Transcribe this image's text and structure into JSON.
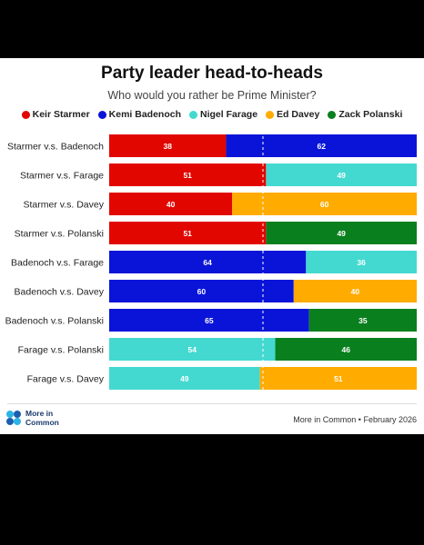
{
  "title": "Party leader head-to-heads",
  "subtitle": "Who would you rather be Prime Minister?",
  "legend": [
    {
      "name": "Keir Starmer",
      "color": "#e10600"
    },
    {
      "name": "Kemi Badenoch",
      "color": "#0a14d8"
    },
    {
      "name": "Nigel Farage",
      "color": "#43d9d0"
    },
    {
      "name": "Ed Davey",
      "color": "#ffab00"
    },
    {
      "name": "Zack Polanski",
      "color": "#0a7f1e"
    }
  ],
  "footer": {
    "logo_text": "More in Common",
    "source": "More in Common • February 2026"
  },
  "chart_data": {
    "type": "bar",
    "orientation": "horizontal",
    "stacked": true,
    "xlim": [
      0,
      100
    ],
    "reference_line": 50,
    "categories": [
      "Starmer v.s. Badenoch",
      "Starmer v.s. Farage",
      "Starmer v.s. Davey",
      "Starmer v.s. Polanski",
      "Badenoch v.s. Farage",
      "Badenoch v.s. Davey",
      "Badenoch v.s. Polanski",
      "Farage v.s. Polanski",
      "Farage v.s. Davey"
    ],
    "rows": [
      {
        "left": {
          "leader": "Keir Starmer",
          "value": 38
        },
        "right": {
          "leader": "Kemi Badenoch",
          "value": 62
        }
      },
      {
        "left": {
          "leader": "Keir Starmer",
          "value": 51
        },
        "right": {
          "leader": "Nigel Farage",
          "value": 49
        }
      },
      {
        "left": {
          "leader": "Keir Starmer",
          "value": 40
        },
        "right": {
          "leader": "Ed Davey",
          "value": 60
        }
      },
      {
        "left": {
          "leader": "Keir Starmer",
          "value": 51
        },
        "right": {
          "leader": "Zack Polanski",
          "value": 49
        }
      },
      {
        "left": {
          "leader": "Kemi Badenoch",
          "value": 64
        },
        "right": {
          "leader": "Nigel Farage",
          "value": 36
        }
      },
      {
        "left": {
          "leader": "Kemi Badenoch",
          "value": 60
        },
        "right": {
          "leader": "Ed Davey",
          "value": 40
        }
      },
      {
        "left": {
          "leader": "Kemi Badenoch",
          "value": 65
        },
        "right": {
          "leader": "Zack Polanski",
          "value": 35
        }
      },
      {
        "left": {
          "leader": "Nigel Farage",
          "value": 54
        },
        "right": {
          "leader": "Zack Polanski",
          "value": 46
        }
      },
      {
        "left": {
          "leader": "Nigel Farage",
          "value": 49
        },
        "right": {
          "leader": "Ed Davey",
          "value": 51
        }
      }
    ],
    "grid": false,
    "legend_position": "top-center"
  }
}
